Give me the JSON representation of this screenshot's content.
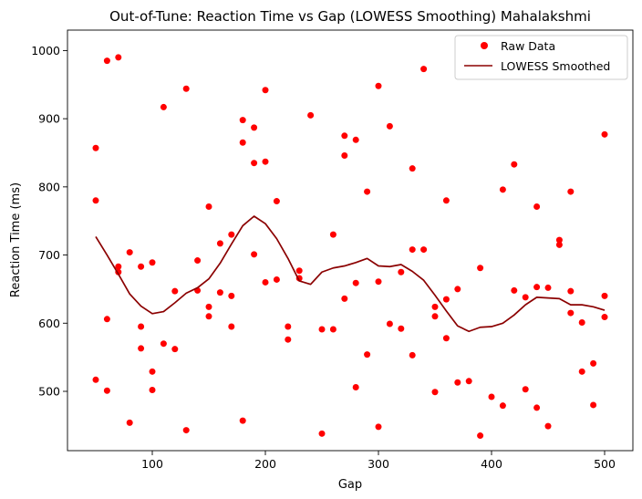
{
  "chart_data": {
    "type": "scatter",
    "title": "Out-of-Tune: Reaction Time vs Gap (LOWESS Smoothing) Mahalakshmi",
    "xlabel": "Gap",
    "ylabel": "Reaction Time (ms)",
    "xlim": [
      25,
      525
    ],
    "ylim": [
      413,
      1030
    ],
    "xticks": [
      100,
      200,
      300,
      400,
      500
    ],
    "yticks": [
      500,
      600,
      700,
      800,
      900,
      1000
    ],
    "grid": false,
    "legend_position": "top-right",
    "colors": {
      "raw": "#ff0000",
      "smoothed": "#8b0000"
    },
    "series": [
      {
        "name": "Raw Data",
        "kind": "scatter",
        "points": [
          [
            50,
            857
          ],
          [
            50,
            780
          ],
          [
            50,
            517
          ],
          [
            60,
            985
          ],
          [
            60,
            606
          ],
          [
            60,
            501
          ],
          [
            70,
            990
          ],
          [
            70,
            683
          ],
          [
            70,
            675
          ],
          [
            80,
            704
          ],
          [
            80,
            454
          ],
          [
            90,
            683
          ],
          [
            90,
            595
          ],
          [
            90,
            563
          ],
          [
            100,
            689
          ],
          [
            100,
            529
          ],
          [
            100,
            502
          ],
          [
            110,
            917
          ],
          [
            110,
            570
          ],
          [
            120,
            647
          ],
          [
            120,
            562
          ],
          [
            130,
            944
          ],
          [
            130,
            443
          ],
          [
            140,
            692
          ],
          [
            140,
            648
          ],
          [
            150,
            771
          ],
          [
            150,
            624
          ],
          [
            150,
            610
          ],
          [
            160,
            717
          ],
          [
            160,
            645
          ],
          [
            170,
            730
          ],
          [
            170,
            640
          ],
          [
            170,
            595
          ],
          [
            180,
            898
          ],
          [
            180,
            865
          ],
          [
            180,
            457
          ],
          [
            190,
            887
          ],
          [
            190,
            835
          ],
          [
            190,
            701
          ],
          [
            200,
            942
          ],
          [
            200,
            837
          ],
          [
            200,
            660
          ],
          [
            210,
            779
          ],
          [
            210,
            664
          ],
          [
            220,
            595
          ],
          [
            220,
            576
          ],
          [
            230,
            677
          ],
          [
            230,
            666
          ],
          [
            240,
            905
          ],
          [
            250,
            591
          ],
          [
            250,
            438
          ],
          [
            260,
            730
          ],
          [
            260,
            591
          ],
          [
            270,
            875
          ],
          [
            270,
            846
          ],
          [
            270,
            636
          ],
          [
            280,
            869
          ],
          [
            280,
            659
          ],
          [
            280,
            506
          ],
          [
            290,
            793
          ],
          [
            290,
            554
          ],
          [
            300,
            948
          ],
          [
            300,
            661
          ],
          [
            300,
            448
          ],
          [
            310,
            889
          ],
          [
            310,
            599
          ],
          [
            320,
            675
          ],
          [
            320,
            592
          ],
          [
            330,
            827
          ],
          [
            330,
            708
          ],
          [
            330,
            553
          ],
          [
            340,
            973
          ],
          [
            340,
            708
          ],
          [
            350,
            624
          ],
          [
            350,
            610
          ],
          [
            350,
            499
          ],
          [
            360,
            780
          ],
          [
            360,
            635
          ],
          [
            360,
            578
          ],
          [
            370,
            650
          ],
          [
            370,
            513
          ],
          [
            380,
            515
          ],
          [
            390,
            681
          ],
          [
            390,
            435
          ],
          [
            400,
            492
          ],
          [
            410,
            796
          ],
          [
            410,
            479
          ],
          [
            420,
            833
          ],
          [
            420,
            648
          ],
          [
            430,
            638
          ],
          [
            430,
            503
          ],
          [
            440,
            771
          ],
          [
            440,
            653
          ],
          [
            440,
            476
          ],
          [
            450,
            652
          ],
          [
            450,
            449
          ],
          [
            460,
            722
          ],
          [
            460,
            715
          ],
          [
            470,
            793
          ],
          [
            470,
            647
          ],
          [
            470,
            615
          ],
          [
            480,
            601
          ],
          [
            480,
            529
          ],
          [
            490,
            541
          ],
          [
            490,
            480
          ],
          [
            500,
            877
          ],
          [
            500,
            640
          ],
          [
            500,
            609
          ]
        ]
      },
      {
        "name": "LOWESS Smoothed",
        "kind": "line",
        "points": [
          [
            50,
            727
          ],
          [
            60,
            700
          ],
          [
            70,
            672
          ],
          [
            80,
            643
          ],
          [
            90,
            625
          ],
          [
            100,
            614
          ],
          [
            110,
            617
          ],
          [
            120,
            630
          ],
          [
            130,
            644
          ],
          [
            140,
            652
          ],
          [
            150,
            665
          ],
          [
            160,
            688
          ],
          [
            170,
            716
          ],
          [
            180,
            743
          ],
          [
            190,
            757
          ],
          [
            200,
            746
          ],
          [
            210,
            724
          ],
          [
            220,
            695
          ],
          [
            230,
            662
          ],
          [
            240,
            657
          ],
          [
            250,
            675
          ],
          [
            260,
            681
          ],
          [
            270,
            684
          ],
          [
            280,
            689
          ],
          [
            290,
            695
          ],
          [
            300,
            684
          ],
          [
            310,
            683
          ],
          [
            320,
            686
          ],
          [
            330,
            676
          ],
          [
            340,
            663
          ],
          [
            350,
            641
          ],
          [
            360,
            618
          ],
          [
            370,
            596
          ],
          [
            380,
            588
          ],
          [
            390,
            594
          ],
          [
            400,
            595
          ],
          [
            410,
            600
          ],
          [
            420,
            612
          ],
          [
            430,
            627
          ],
          [
            440,
            638
          ],
          [
            450,
            637
          ],
          [
            460,
            636
          ],
          [
            470,
            627
          ],
          [
            480,
            627
          ],
          [
            490,
            624
          ],
          [
            500,
            619
          ]
        ]
      }
    ]
  }
}
